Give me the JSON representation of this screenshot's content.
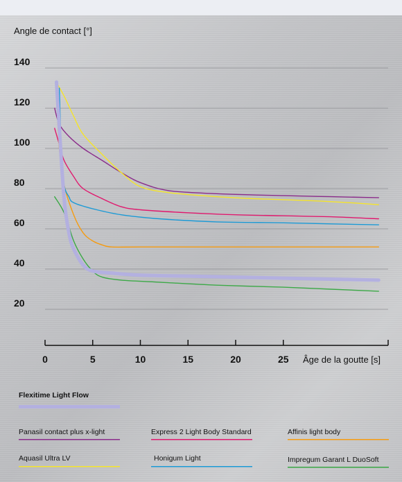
{
  "chart_data": {
    "type": "line",
    "ylabel": "Angle de contact [°]",
    "xlabel": "Âge de la goutte [s]",
    "x_ticks": [
      0,
      5,
      10,
      15,
      20,
      25
    ],
    "y_ticks": [
      20,
      40,
      60,
      80,
      100,
      120,
      140
    ],
    "xlim": [
      0,
      35
    ],
    "ylim": [
      20,
      140
    ],
    "grid": "horizontal",
    "legend_position": "bottom",
    "series": [
      {
        "name": "Flexitime Light Flow",
        "color": "#b3b0e0",
        "emphasis": true,
        "points": [
          [
            1.2,
            133
          ],
          [
            1.5,
            110
          ],
          [
            2,
            75
          ],
          [
            2.5,
            58
          ],
          [
            3,
            50
          ],
          [
            4,
            42
          ],
          [
            5,
            39
          ],
          [
            7,
            38
          ],
          [
            10,
            37
          ],
          [
            15,
            36.5
          ],
          [
            20,
            36
          ],
          [
            25,
            35.5
          ],
          [
            30,
            35
          ],
          [
            35,
            34.5
          ]
        ]
      },
      {
        "name": "Panasil contact plus x-light",
        "color": "#8a2b8a",
        "points": [
          [
            1,
            120
          ],
          [
            1.5,
            112
          ],
          [
            2.5,
            106
          ],
          [
            4,
            100
          ],
          [
            6,
            94
          ],
          [
            8,
            88
          ],
          [
            10,
            83
          ],
          [
            13,
            79
          ],
          [
            18,
            77.5
          ],
          [
            25,
            76.5
          ],
          [
            30,
            76
          ],
          [
            35,
            75.5
          ]
        ]
      },
      {
        "name": "Express 2 Light Body Standard",
        "color": "#e0196e",
        "points": [
          [
            1,
            110
          ],
          [
            1.5,
            102
          ],
          [
            2,
            94
          ],
          [
            3,
            86
          ],
          [
            4,
            80
          ],
          [
            6,
            75
          ],
          [
            8,
            71
          ],
          [
            10,
            69.5
          ],
          [
            15,
            68
          ],
          [
            20,
            67
          ],
          [
            25,
            66.5
          ],
          [
            30,
            66
          ],
          [
            35,
            65
          ]
        ]
      },
      {
        "name": "Affinis light body",
        "color": "#f59b10",
        "points": [
          [
            1.2,
            128
          ],
          [
            1.5,
            100
          ],
          [
            2,
            82
          ],
          [
            3,
            67
          ],
          [
            4,
            58
          ],
          [
            5,
            54
          ],
          [
            6,
            52
          ],
          [
            7,
            51
          ],
          [
            10,
            51
          ],
          [
            20,
            51
          ],
          [
            35,
            51
          ]
        ]
      },
      {
        "name": "Aquasil Ultra LV",
        "color": "#f5e42a",
        "points": [
          [
            1.3,
            132
          ],
          [
            2,
            126
          ],
          [
            3,
            116
          ],
          [
            4,
            107
          ],
          [
            6,
            97
          ],
          [
            8,
            88
          ],
          [
            10,
            81
          ],
          [
            13,
            78
          ],
          [
            18,
            76
          ],
          [
            22,
            75
          ],
          [
            28,
            74
          ],
          [
            32,
            73
          ],
          [
            35,
            72
          ]
        ]
      },
      {
        "name": "Honigum Light",
        "color": "#1b9ad6",
        "points": [
          [
            1.5,
            130
          ],
          [
            1.7,
            100
          ],
          [
            2,
            82
          ],
          [
            2.5,
            76
          ],
          [
            3,
            73
          ],
          [
            5,
            70
          ],
          [
            8,
            67
          ],
          [
            12,
            65
          ],
          [
            18,
            63.5
          ],
          [
            25,
            63
          ],
          [
            30,
            62.5
          ],
          [
            35,
            62
          ]
        ]
      },
      {
        "name": "Impregum Garant L DuoSoft",
        "color": "#3aa845",
        "points": [
          [
            1,
            76
          ],
          [
            2,
            68
          ],
          [
            3,
            54
          ],
          [
            4,
            45
          ],
          [
            5,
            39
          ],
          [
            6,
            36
          ],
          [
            8,
            34.5
          ],
          [
            12,
            33.5
          ],
          [
            18,
            32
          ],
          [
            25,
            31
          ],
          [
            30,
            30
          ],
          [
            35,
            29
          ]
        ]
      }
    ]
  },
  "legend": {
    "flexitime": "Flexitime Light Flow",
    "panasil": "Panasil contact plus x-light",
    "express": "Express 2 Light Body Standard",
    "affinis": "Affinis light body",
    "aquasil": "Aquasil Ultra LV",
    "honigum": "Honigum Light",
    "impregum": "Impregum Garant L DuoSoft"
  }
}
